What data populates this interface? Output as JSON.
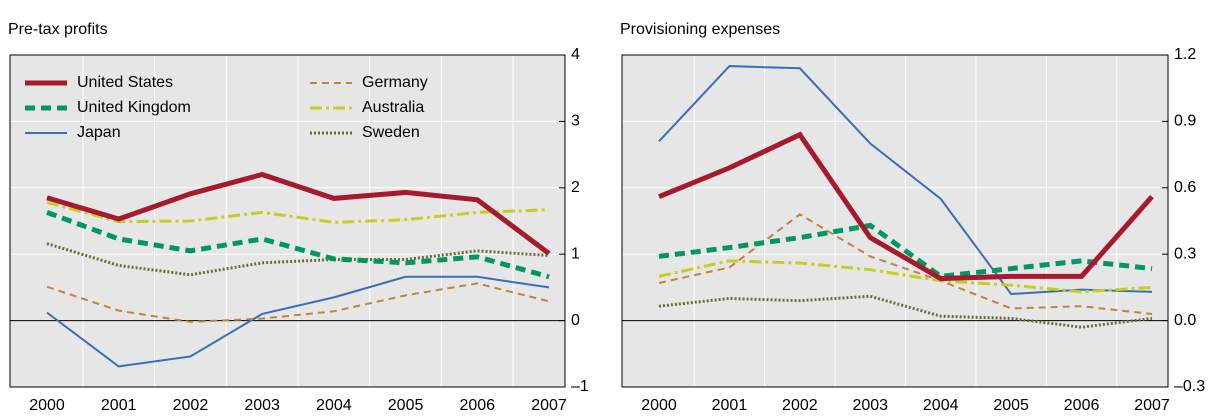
{
  "chart_data": [
    {
      "type": "line",
      "title": "Pre-tax profits",
      "categories": [
        "2000",
        "2001",
        "2002",
        "2003",
        "2004",
        "2005",
        "2006",
        "2007"
      ],
      "ylim": [
        -1,
        4
      ],
      "yticks": [
        {
          "value": -1,
          "label": "–1"
        },
        0,
        1,
        2,
        3,
        4
      ],
      "grid": true,
      "series": [
        {
          "name": "United States",
          "color": "#a6192e",
          "dash": "solid",
          "width": 5,
          "values": [
            1.85,
            1.53,
            1.91,
            2.2,
            1.84,
            1.93,
            1.82,
            1.01
          ]
        },
        {
          "name": "United Kingdom",
          "color": "#00985f",
          "dash": "dashed",
          "width": 5,
          "values": [
            1.63,
            1.23,
            1.05,
            1.23,
            0.93,
            0.87,
            0.96,
            0.66
          ]
        },
        {
          "name": "Japan",
          "color": "#3a6fb7",
          "dash": "solid",
          "width": 2,
          "values": [
            0.12,
            -0.69,
            -0.54,
            0.1,
            0.35,
            0.66,
            0.66,
            0.5
          ]
        },
        {
          "name": "Germany",
          "color": "#c0843a",
          "dash": "shortdash",
          "width": 2,
          "values": [
            0.51,
            0.15,
            -0.02,
            0.03,
            0.14,
            0.38,
            0.56,
            0.29
          ]
        },
        {
          "name": "Australia",
          "color": "#c3cf21",
          "dash": "dashdot",
          "width": 3,
          "values": [
            1.78,
            1.49,
            1.5,
            1.63,
            1.48,
            1.52,
            1.63,
            1.67
          ]
        },
        {
          "name": "Sweden",
          "color": "#6b6b3a",
          "dash": "dotted",
          "width": 3,
          "values": [
            1.16,
            0.83,
            0.69,
            0.87,
            0.92,
            0.92,
            1.05,
            0.98
          ]
        }
      ]
    },
    {
      "type": "line",
      "title": "Provisioning expenses",
      "categories": [
        "2000",
        "2001",
        "2002",
        "2003",
        "2004",
        "2005",
        "2006",
        "2007"
      ],
      "ylim": [
        -0.3,
        1.2
      ],
      "yticks": [
        {
          "value": -0.3,
          "label": "–0.3"
        },
        {
          "value": 0,
          "label": "0.0"
        },
        0.3,
        0.6,
        0.9,
        1.2
      ],
      "grid": true,
      "series": [
        {
          "color": "#a6192e",
          "dash": "solid",
          "width": 5,
          "values": [
            0.56,
            0.69,
            0.84,
            0.375,
            0.19,
            0.2,
            0.2,
            0.56
          ]
        },
        {
          "color": "#00985f",
          "dash": "dashed",
          "width": 5,
          "values": [
            0.29,
            0.33,
            0.375,
            0.43,
            0.2,
            0.235,
            0.27,
            0.235
          ]
        },
        {
          "color": "#3a6fb7",
          "dash": "solid",
          "width": 2,
          "values": [
            0.81,
            1.15,
            1.14,
            0.8,
            0.55,
            0.12,
            0.14,
            0.13
          ]
        },
        {
          "color": "#c0843a",
          "dash": "shortdash",
          "width": 2,
          "values": [
            0.17,
            0.24,
            0.48,
            0.29,
            0.18,
            0.055,
            0.065,
            0.03
          ]
        },
        {
          "color": "#c3cf21",
          "dash": "dashdot",
          "width": 3,
          "values": [
            0.2,
            0.27,
            0.26,
            0.23,
            0.18,
            0.16,
            0.13,
            0.15
          ]
        },
        {
          "color": "#6b6b3a",
          "dash": "dotted",
          "width": 3,
          "values": [
            0.065,
            0.1,
            0.09,
            0.11,
            0.02,
            0.01,
            -0.03,
            0.01
          ]
        }
      ]
    }
  ]
}
